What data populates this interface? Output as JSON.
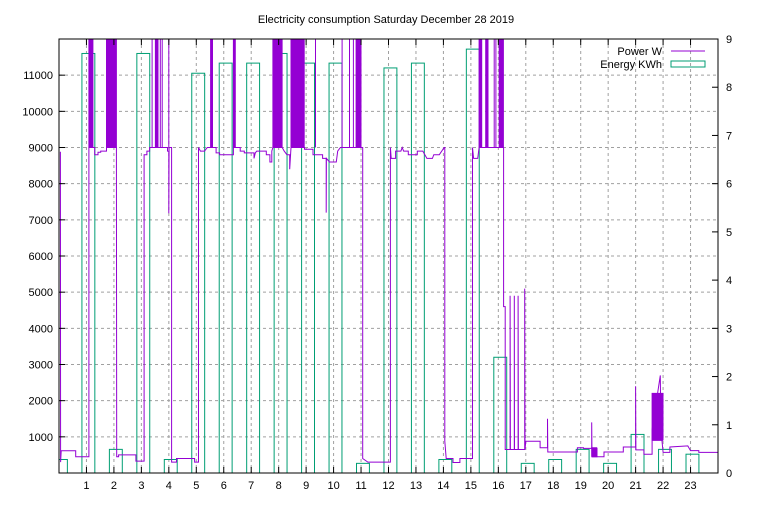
{
  "chart_data": {
    "type": "line",
    "title": "Electricity consumption Saturday December 28 2019",
    "xlabel": "",
    "ylabel": "",
    "y2label": "",
    "xlim": [
      0,
      24
    ],
    "ylim": [
      0,
      12000
    ],
    "y2lim": [
      0,
      9
    ],
    "grid": true,
    "legend_position": "top-right",
    "x_ticks": [
      "1",
      "2",
      "3",
      "4",
      "5",
      "6",
      "7",
      "8",
      "9",
      "10",
      "11",
      "12",
      "13",
      "14",
      "15",
      "16",
      "17",
      "18",
      "19",
      "20",
      "21",
      "22",
      "23"
    ],
    "y_ticks": [
      "1000",
      "2000",
      "3000",
      "4000",
      "5000",
      "6000",
      "7000",
      "8000",
      "9000",
      "10000",
      "11000"
    ],
    "y2_ticks": [
      "0",
      "1",
      "2",
      "3",
      "4",
      "5",
      "6",
      "7",
      "8",
      "9"
    ],
    "colors": {
      "power": "#9400d3",
      "energy": "#009e73",
      "grid": "#a0a0a0"
    },
    "series": [
      {
        "name": "Power W",
        "axis": "left",
        "style": "line",
        "points": [
          [
            0.05,
            8880
          ],
          [
            0.06,
            300
          ],
          [
            0.08,
            616
          ],
          [
            0.61,
            616
          ],
          [
            0.61,
            450
          ],
          [
            1.09,
            450
          ],
          [
            1.09,
            9000
          ],
          [
            1.24,
            9000
          ],
          [
            1.3,
            9000
          ],
          [
            1.3,
            8800
          ],
          [
            1.42,
            8800
          ],
          [
            1.42,
            8870
          ],
          [
            1.52,
            8870
          ],
          [
            1.52,
            8900
          ],
          [
            1.73,
            8900
          ],
          [
            1.73,
            9000
          ],
          [
            2.09,
            9000
          ],
          [
            2.1,
            450
          ],
          [
            2.17,
            450
          ],
          [
            2.17,
            500
          ],
          [
            2.8,
            500
          ],
          [
            2.8,
            330
          ],
          [
            3.1,
            330
          ],
          [
            3.1,
            8800
          ],
          [
            3.2,
            8800
          ],
          [
            3.2,
            8900
          ],
          [
            3.3,
            8900
          ],
          [
            3.3,
            9000
          ],
          [
            3.95,
            9000
          ],
          [
            3.95,
            8900
          ],
          [
            4.0,
            8900
          ],
          [
            4.0,
            7180
          ],
          [
            4.01,
            9000
          ],
          [
            4.1,
            9000
          ],
          [
            4.1,
            300
          ],
          [
            4.28,
            300
          ],
          [
            4.28,
            400
          ],
          [
            4.94,
            400
          ],
          [
            4.94,
            300
          ],
          [
            5.08,
            300
          ],
          [
            5.08,
            9000
          ],
          [
            5.15,
            8900
          ],
          [
            5.3,
            8900
          ],
          [
            5.4,
            9000
          ],
          [
            5.72,
            9000
          ],
          [
            5.72,
            8850
          ],
          [
            5.85,
            8850
          ],
          [
            5.85,
            8800
          ],
          [
            6.35,
            8800
          ],
          [
            6.35,
            9000
          ],
          [
            6.6,
            9000
          ],
          [
            6.6,
            8900
          ],
          [
            6.75,
            8900
          ],
          [
            6.75,
            8850
          ],
          [
            7.1,
            8850
          ],
          [
            7.1,
            8700
          ],
          [
            7.15,
            8850
          ],
          [
            7.2,
            8900
          ],
          [
            7.55,
            8900
          ],
          [
            7.55,
            8800
          ],
          [
            7.68,
            8800
          ],
          [
            7.68,
            8600
          ],
          [
            7.75,
            8600
          ],
          [
            7.75,
            8900
          ],
          [
            7.79,
            9000
          ],
          [
            8.13,
            9000
          ],
          [
            8.2,
            8900
          ],
          [
            8.3,
            8800
          ],
          [
            8.4,
            8800
          ],
          [
            8.4,
            8400
          ],
          [
            8.45,
            9000
          ],
          [
            8.94,
            9000
          ],
          [
            8.94,
            8950
          ],
          [
            9.25,
            8950
          ],
          [
            9.25,
            8800
          ],
          [
            9.6,
            8800
          ],
          [
            9.6,
            8700
          ],
          [
            9.73,
            8700
          ],
          [
            9.73,
            7200
          ],
          [
            9.74,
            8700
          ],
          [
            9.85,
            8600
          ],
          [
            10.1,
            8600
          ],
          [
            10.15,
            8900
          ],
          [
            10.25,
            9000
          ],
          [
            11.06,
            9000
          ],
          [
            11.06,
            400
          ],
          [
            11.25,
            300
          ],
          [
            12.07,
            300
          ],
          [
            12.07,
            9000
          ],
          [
            12.1,
            8700
          ],
          [
            12.26,
            8700
          ],
          [
            12.26,
            8900
          ],
          [
            12.45,
            8900
          ],
          [
            12.5,
            9000
          ],
          [
            12.55,
            8900
          ],
          [
            12.72,
            8900
          ],
          [
            12.72,
            8800
          ],
          [
            13.05,
            8800
          ],
          [
            13.05,
            8900
          ],
          [
            13.25,
            8900
          ],
          [
            13.4,
            8700
          ],
          [
            13.6,
            8700
          ],
          [
            13.65,
            8800
          ],
          [
            13.85,
            8800
          ],
          [
            14.03,
            9000
          ],
          [
            14.05,
            9000
          ],
          [
            14.05,
            880
          ],
          [
            14.1,
            400
          ],
          [
            14.35,
            400
          ],
          [
            14.35,
            290
          ],
          [
            14.6,
            290
          ],
          [
            14.6,
            400
          ],
          [
            15.06,
            400
          ],
          [
            15.06,
            9000
          ],
          [
            15.1,
            8700
          ],
          [
            15.25,
            8700
          ],
          [
            15.3,
            9000
          ],
          [
            16.19,
            9000
          ],
          [
            16.19,
            4600
          ],
          [
            16.25,
            4600
          ],
          [
            16.25,
            650
          ],
          [
            16.43,
            650
          ],
          [
            16.43,
            4900
          ],
          [
            16.44,
            650
          ],
          [
            16.58,
            650
          ],
          [
            16.58,
            4900
          ],
          [
            16.59,
            650
          ],
          [
            16.72,
            650
          ],
          [
            16.72,
            4900
          ],
          [
            16.73,
            650
          ],
          [
            16.96,
            650
          ],
          [
            16.96,
            5100
          ],
          [
            16.97,
            650
          ],
          [
            17.0,
            880
          ],
          [
            17.52,
            880
          ],
          [
            17.52,
            700
          ],
          [
            17.79,
            700
          ],
          [
            17.79,
            1500
          ],
          [
            17.8,
            580
          ],
          [
            18.88,
            580
          ],
          [
            18.88,
            700
          ],
          [
            19.1,
            700
          ],
          [
            19.1,
            680
          ],
          [
            19.4,
            680
          ],
          [
            19.4,
            1400
          ],
          [
            19.41,
            450
          ],
          [
            19.85,
            450
          ],
          [
            19.85,
            580
          ],
          [
            20.55,
            580
          ],
          [
            20.55,
            720
          ],
          [
            21.0,
            720
          ],
          [
            21.0,
            2400
          ],
          [
            21.01,
            640
          ],
          [
            21.3,
            640
          ],
          [
            21.3,
            517
          ],
          [
            21.6,
            517
          ],
          [
            21.6,
            1200
          ],
          [
            21.9,
            2700
          ],
          [
            21.92,
            1200
          ],
          [
            22.0,
            570
          ],
          [
            22.25,
            570
          ],
          [
            22.25,
            720
          ],
          [
            22.9,
            750
          ],
          [
            23.0,
            620
          ],
          [
            23.3,
            620
          ],
          [
            23.3,
            570
          ],
          [
            24,
            570
          ]
        ],
        "bursts": [
          [
            1.09,
            1.24,
            9000,
            12500
          ],
          [
            1.73,
            2.09,
            9000,
            12500
          ],
          [
            3.39,
            3.4,
            9000,
            12500
          ],
          [
            3.51,
            3.61,
            9000,
            12500
          ],
          [
            3.69,
            3.7,
            9000,
            12500
          ],
          [
            3.76,
            3.77,
            9000,
            12500
          ],
          [
            4.0,
            4.01,
            9000,
            12500
          ],
          [
            5.52,
            5.6,
            9000,
            12500
          ],
          [
            6.35,
            6.43,
            9000,
            12500
          ],
          [
            7.79,
            8.13,
            9000,
            12500
          ],
          [
            8.45,
            8.94,
            9000,
            12500
          ],
          [
            9.34,
            9.35,
            9000,
            12500
          ],
          [
            10.31,
            10.32,
            9000,
            12500
          ],
          [
            10.58,
            10.59,
            9000,
            12500
          ],
          [
            10.72,
            10.73,
            9000,
            12500
          ],
          [
            10.82,
            11.0,
            9000,
            12500
          ],
          [
            15.3,
            15.4,
            9000,
            12500
          ],
          [
            15.54,
            15.63,
            9000,
            12500
          ],
          [
            15.85,
            15.86,
            9000,
            12500
          ],
          [
            15.91,
            15.92,
            9000,
            12500
          ],
          [
            16.03,
            16.19,
            9000,
            12500
          ],
          [
            19.4,
            19.6,
            450,
            700
          ],
          [
            21.6,
            22.0,
            900,
            2200
          ]
        ]
      },
      {
        "name": "Energy KWh",
        "axis": "right",
        "style": "boxes",
        "x": [
          0,
          1,
          2,
          3,
          4,
          5,
          6,
          7,
          8,
          9,
          10,
          11,
          12,
          13,
          14,
          15,
          16,
          17,
          18,
          19,
          20,
          21,
          22,
          23
        ],
        "values": [
          0.28,
          8.7,
          0.49,
          8.7,
          0.28,
          8.29,
          8.5,
          8.5,
          8.7,
          8.5,
          8.5,
          0.2,
          8.4,
          8.5,
          0.28,
          8.79,
          2.4,
          0.2,
          0.28,
          0.49,
          0.2,
          0.8,
          0.49,
          0.39
        ]
      }
    ]
  }
}
